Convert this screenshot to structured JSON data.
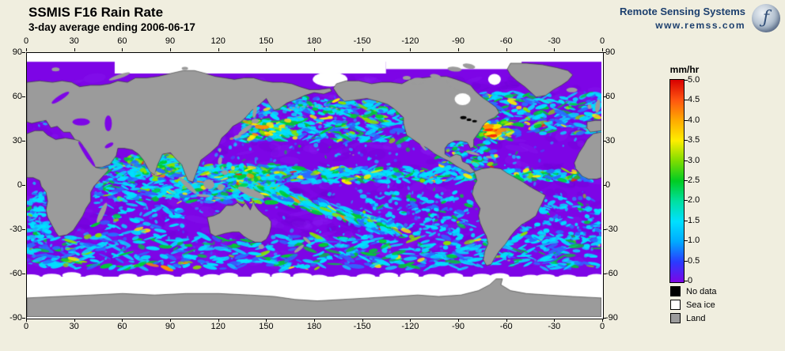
{
  "header": {
    "title": "SSMIS F16 Rain Rate",
    "subtitle": "3-day average ending 2006-06-17"
  },
  "branding": {
    "name": "Remote Sensing Systems",
    "url": "www.remss.com"
  },
  "map": {
    "lon_ticks": [
      "0",
      "30",
      "60",
      "90",
      "120",
      "150",
      "180",
      "-150",
      "-120",
      "-90",
      "-60",
      "-30",
      "0"
    ],
    "lat_ticks": [
      "90",
      "60",
      "30",
      "0",
      "-30",
      "-60",
      "-90"
    ]
  },
  "colorbar": {
    "unit": "mm/hr",
    "min": 0,
    "max": 5.0,
    "ticks": [
      "5.0",
      "4.5",
      "4.0",
      "3.5",
      "3.0",
      "2.5",
      "2.0",
      "1.5",
      "1.0",
      "0.5",
      "0"
    ],
    "gradient_bottom_to_top": [
      "#7d05e6",
      "#2a3bff",
      "#00aaff",
      "#00e0ff",
      "#00e0a0",
      "#00cc22",
      "#7fdd00",
      "#ffee00",
      "#ffaa00",
      "#ff5510",
      "#d80000"
    ]
  },
  "legend": {
    "items": [
      {
        "label": "No data",
        "color": "#000000"
      },
      {
        "label": "Sea ice",
        "color": "#ffffff"
      },
      {
        "label": "Land",
        "color": "#9b9b9b"
      }
    ]
  },
  "palette": {
    "background": "#f0eedf",
    "ocean": "#7d05e6",
    "land": "#9b9b9b",
    "coast": "#2e2e2e",
    "sea_ice": "#ffffff",
    "no_data": "#000000",
    "rain_colors": [
      "#00e0ff",
      "#2a6bff",
      "#00cc33",
      "#8ae000",
      "#ffee00",
      "#ff9000",
      "#ff2200"
    ]
  }
}
